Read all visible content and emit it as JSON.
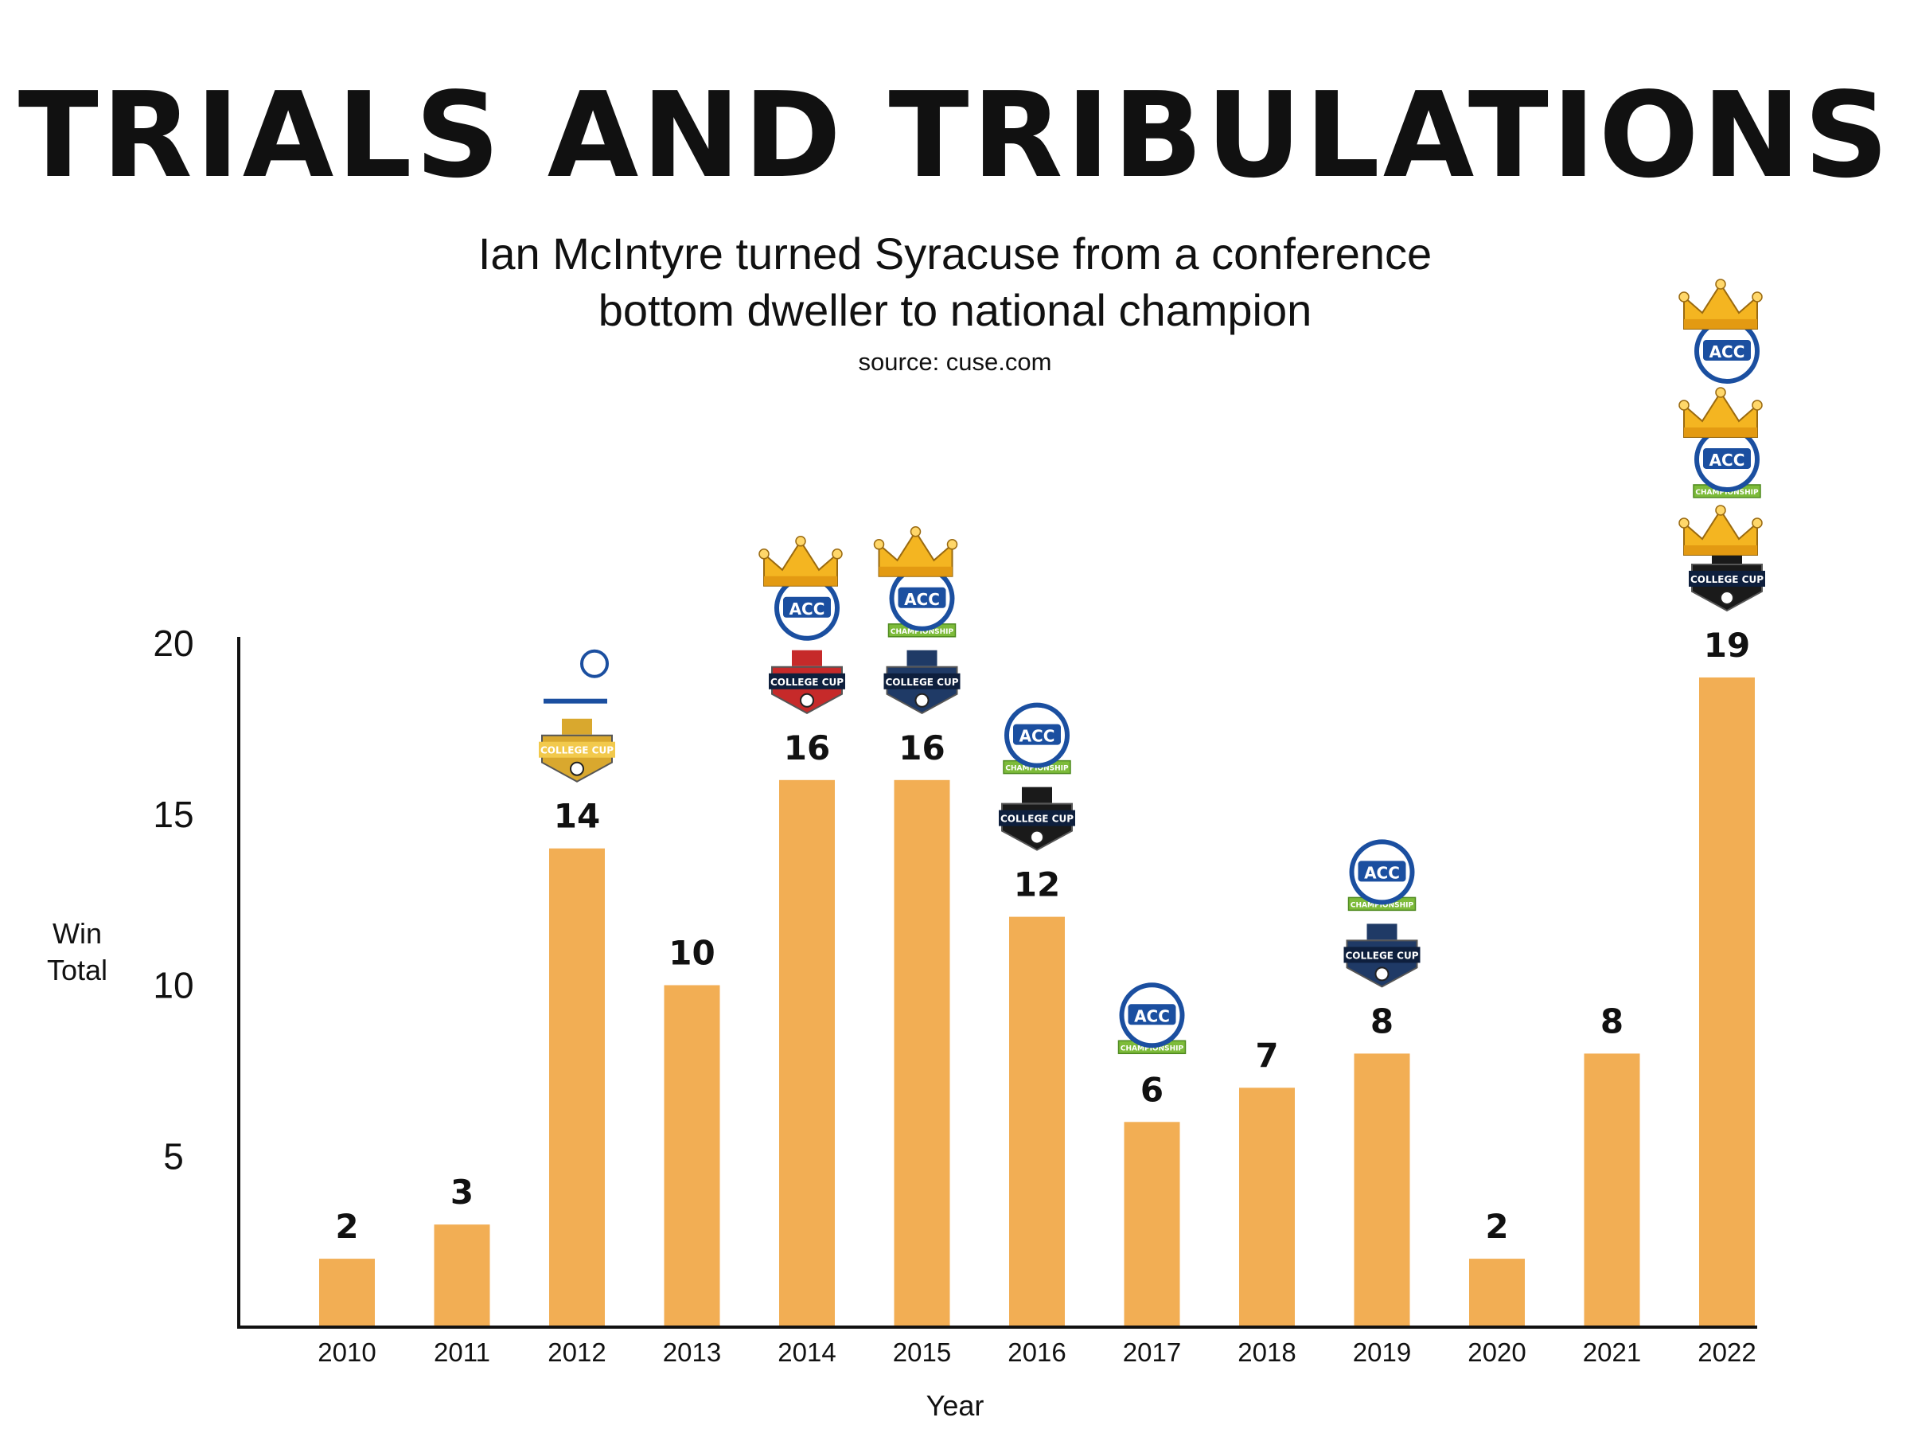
{
  "title": "TRIALS AND TRIBULATIONS",
  "subtitle_lines": [
    "Ian McIntyre turned Syracuse from a conference",
    "bottom dweller to national champion"
  ],
  "source": "source: cuse.com",
  "colors": {
    "bar": "#F2AE54",
    "axis": "#111111",
    "acc_blue": "#1B4FA0",
    "ribbon_green": "#7DBB3A",
    "crown": "#F4B521",
    "ncaa_navy": "#1F3A66",
    "ncaa_black": "#1A1A1A",
    "big_east_red": "#C62A2A",
    "big_east_blue": "#1B4FA0",
    "gold": "#D9A82E"
  },
  "chart_data": {
    "type": "bar",
    "title": "TRIALS AND TRIBULATIONS",
    "xlabel": "Year",
    "ylabel": "Win Total",
    "ylabel_lines": [
      "Win",
      "Total"
    ],
    "ylim": [
      0,
      20
    ],
    "yticks": [
      5,
      10,
      15,
      20
    ],
    "grid": false,
    "legend": "none",
    "categories": [
      "2010",
      "2011",
      "2012",
      "2013",
      "2014",
      "2015",
      "2016",
      "2017",
      "2018",
      "2019",
      "2020",
      "2021",
      "2022"
    ],
    "values": [
      2,
      3,
      14,
      10,
      16,
      16,
      12,
      6,
      7,
      8,
      2,
      8,
      19
    ],
    "value_labels": [
      "2",
      "3",
      "14",
      "10",
      "16",
      "16",
      "12",
      "6",
      "7",
      "8",
      "2",
      "8",
      "19"
    ],
    "icons": [
      [],
      [],
      [
        "big-east-soccer-logo",
        "college-cup-gold-logo"
      ],
      [],
      [
        "crown-icon",
        "acc-logo",
        "college-cup-red-logo"
      ],
      [
        "crown-icon",
        "acc-championship-logo",
        "college-cup-navy-logo"
      ],
      [
        "acc-championship-logo",
        "college-cup-black-logo"
      ],
      [
        "acc-championship-logo"
      ],
      [],
      [
        "acc-championship-logo",
        "college-cup-navy-logo"
      ],
      [],
      [],
      [
        "crown-icon",
        "acc-logo",
        "crown-icon",
        "acc-championship-logo",
        "crown-icon",
        "college-cup-black-logo"
      ]
    ]
  }
}
